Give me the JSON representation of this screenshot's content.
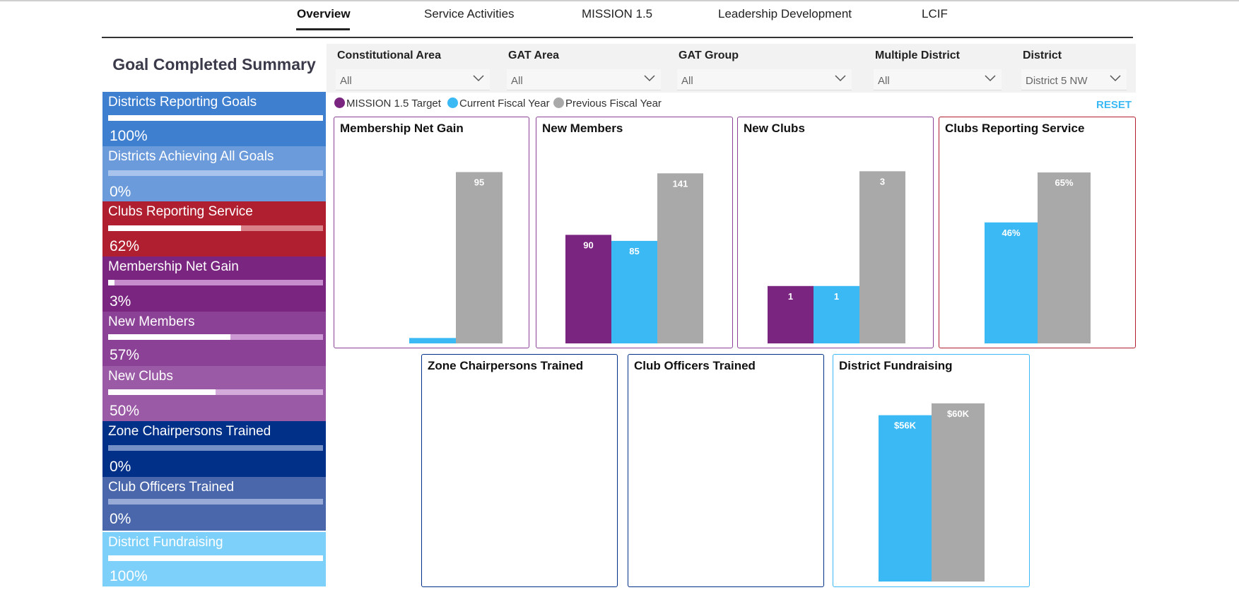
{
  "tabs": [
    {
      "label": "Overview",
      "active": true
    },
    {
      "label": "Service Activities",
      "active": false
    },
    {
      "label": "MISSION 1.5",
      "active": false
    },
    {
      "label": "Leadership Development",
      "active": false
    },
    {
      "label": "LCIF",
      "active": false
    }
  ],
  "summary": {
    "title": "Goal Completed Summary",
    "items": [
      {
        "label": "Districts Reporting Goals",
        "pct_text": "100%",
        "progress": 1.0,
        "bg": "#3f7fd0",
        "track": "#8fb5e6"
      },
      {
        "label": "Districts Achieving All Goals",
        "pct_text": "0%",
        "progress": 0.0,
        "bg": "#6b9bdb",
        "track": "#a8c4ec"
      },
      {
        "label": "Clubs Reporting Service",
        "pct_text": "62%",
        "progress": 0.62,
        "bg": "#b01f2f",
        "track": "#d98089"
      },
      {
        "label": "Membership Net Gain",
        "pct_text": "3%",
        "progress": 0.03,
        "bg": "#7a2580",
        "track": "#c78ccc"
      },
      {
        "label": "New Members",
        "pct_text": "57%",
        "progress": 0.57,
        "bg": "#8b4196",
        "track": "#cc99d4"
      },
      {
        "label": "New Clubs",
        "pct_text": "50%",
        "progress": 0.5,
        "bg": "#9a5aa6",
        "track": "#d4aadb"
      },
      {
        "label": "Zone Chairpersons Trained",
        "pct_text": "0%",
        "progress": 0.0,
        "bg": "#003087",
        "track": "#7590c6"
      },
      {
        "label": "Club Officers Trained",
        "pct_text": "0%",
        "progress": 0.0,
        "bg": "#4a67ab",
        "track": "#97abd6"
      },
      {
        "label": "District Fundraising",
        "pct_text": "100%",
        "progress": 1.0,
        "bg": "#7dd0fa",
        "track": "#b9e6fd"
      }
    ]
  },
  "filters": [
    {
      "label": "Constitutional Area",
      "value": "All"
    },
    {
      "label": "GAT Area",
      "value": "All"
    },
    {
      "label": "GAT Group",
      "value": "All"
    },
    {
      "label": "Multiple District",
      "value": "All"
    },
    {
      "label": "District",
      "value": "District 5 NW"
    }
  ],
  "legend": [
    {
      "label": "MISSION 1.5 Target",
      "color": "#7a2580"
    },
    {
      "label": "Current Fiscal Year",
      "color": "#3bb9f5"
    },
    {
      "label": "Previous Fiscal Year",
      "color": "#a9a9a9"
    }
  ],
  "reset_label": "RESET",
  "colors": {
    "target": "#7a2580",
    "current": "#3bb9f5",
    "previous": "#a9a9a9"
  },
  "chart_data": [
    {
      "type": "bar",
      "title": "Membership Net Gain",
      "border": "#8b4196",
      "series": [
        {
          "name": "Current Fiscal Year",
          "values": [
            3
          ],
          "labels": [
            ""
          ]
        },
        {
          "name": "Previous Fiscal Year",
          "values": [
            95
          ],
          "labels": [
            "95"
          ]
        }
      ],
      "ylim": [
        0,
        105
      ]
    },
    {
      "type": "bar",
      "title": "New Members",
      "border": "#8b4196",
      "series": [
        {
          "name": "MISSION 1.5 Target",
          "values": [
            90
          ],
          "labels": [
            "90"
          ]
        },
        {
          "name": "Current Fiscal Year",
          "values": [
            85
          ],
          "labels": [
            "85"
          ]
        },
        {
          "name": "Previous Fiscal Year",
          "values": [
            141
          ],
          "labels": [
            "141"
          ]
        }
      ],
      "ylim": [
        0,
        157
      ]
    },
    {
      "type": "bar",
      "title": "New Clubs",
      "border": "#8b4196",
      "series": [
        {
          "name": "MISSION 1.5 Target",
          "values": [
            1
          ],
          "labels": [
            "1"
          ]
        },
        {
          "name": "Current Fiscal Year",
          "values": [
            1
          ],
          "labels": [
            "1"
          ]
        },
        {
          "name": "Previous Fiscal Year",
          "values": [
            3
          ],
          "labels": [
            "3"
          ]
        }
      ],
      "ylim": [
        0,
        3.3
      ]
    },
    {
      "type": "bar",
      "title": "Clubs Reporting Service",
      "border": "#b01f2f",
      "series": [
        {
          "name": "Current Fiscal Year",
          "values": [
            46
          ],
          "labels": [
            "46%"
          ]
        },
        {
          "name": "Previous Fiscal Year",
          "values": [
            65
          ],
          "labels": [
            "65%"
          ]
        }
      ],
      "ylim": [
        0,
        72
      ]
    },
    {
      "type": "bar",
      "title": "Zone Chairpersons Trained",
      "border": "#003087",
      "series": [],
      "ylim": [
        0,
        1
      ]
    },
    {
      "type": "bar",
      "title": "Club Officers Trained",
      "border": "#003087",
      "series": [],
      "ylim": [
        0,
        1
      ]
    },
    {
      "type": "bar",
      "title": "District Fundraising",
      "border": "#3bb9f5",
      "series": [
        {
          "name": "Current Fiscal Year",
          "values": [
            56
          ],
          "labels": [
            "$56K"
          ]
        },
        {
          "name": "Previous Fiscal Year",
          "values": [
            60
          ],
          "labels": [
            "$60K"
          ]
        }
      ],
      "ylim": [
        0,
        64
      ]
    }
  ]
}
